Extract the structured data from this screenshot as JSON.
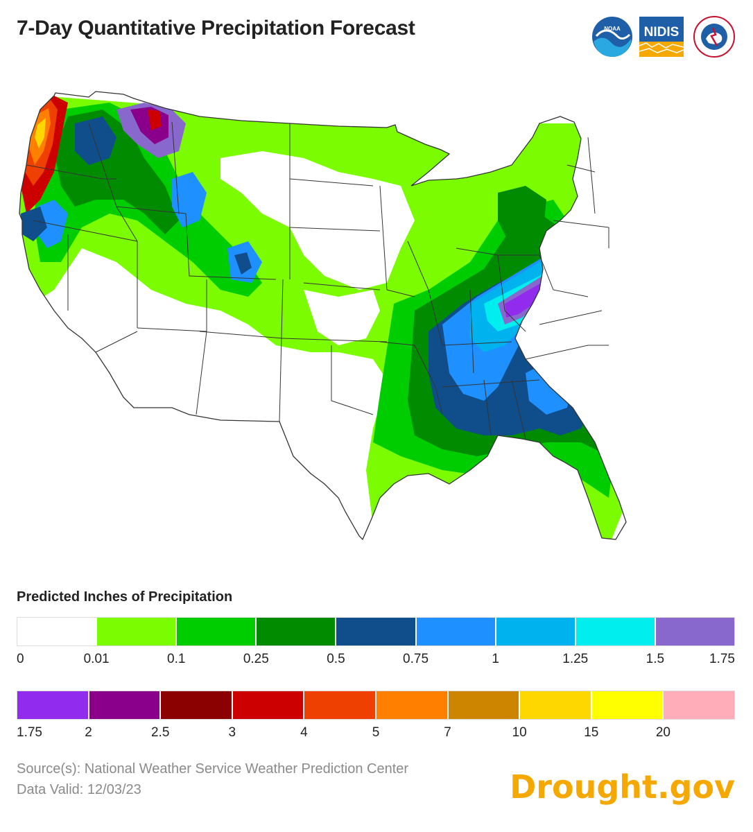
{
  "title": "7-Day Quantitative Precipitation Forecast",
  "logos": {
    "noaa_text": "NOAA",
    "nidis_text": "NIDIS",
    "nws_text": "NATIONAL WEATHER SERVICE"
  },
  "map": {
    "region": "Contiguous United States",
    "icon": "us-map"
  },
  "legend": {
    "title": "Predicted Inches of Precipitation",
    "row1": {
      "colors": [
        "#ffffff",
        "#7cfc00",
        "#00cd00",
        "#008b00",
        "#104e8b",
        "#1e90ff",
        "#00b2ee",
        "#00eeee",
        "#8968cd"
      ],
      "ticks": [
        "0",
        "0.01",
        "0.1",
        "0.25",
        "0.5",
        "0.75",
        "1",
        "1.25",
        "1.5",
        "1.75"
      ]
    },
    "row2": {
      "colors": [
        "#912cee",
        "#8b008b",
        "#8b0000",
        "#cd0000",
        "#ee4000",
        "#ff7f00",
        "#cd8500",
        "#ffd700",
        "#ffff00",
        "#ffaeb9"
      ],
      "ticks": [
        "1.75",
        "2",
        "2.5",
        "3",
        "4",
        "5",
        "7",
        "10",
        "15",
        "20"
      ]
    }
  },
  "source": {
    "line1": "Source(s): National Weather Service Weather Prediction Center",
    "line2": "Data Valid: 12/03/23"
  },
  "brand": "Drought.gov"
}
